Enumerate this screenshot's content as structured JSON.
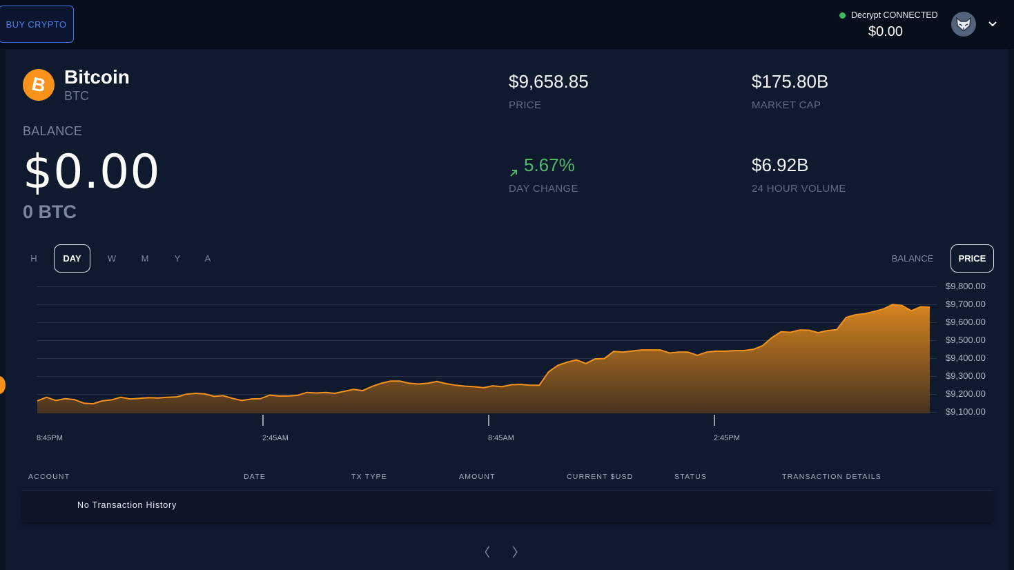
{
  "header": {
    "buy_button": "BUY CRYPTO",
    "connection_status": "Decrypt CONNECTED",
    "wallet_balance": "$0.00",
    "avatar_icon": "fox-icon",
    "menu_icon": "chevron-down-icon"
  },
  "asset": {
    "name": "Bitcoin",
    "ticker": "BTC",
    "logo_icon": "bitcoin-icon",
    "balance_label": "BALANCE",
    "balance_usd": "$0.00",
    "balance_btc": "0 BTC"
  },
  "stats": {
    "price": {
      "value": "$9,658.85",
      "label": "PRICE"
    },
    "market_cap": {
      "value": "$175.80B",
      "label": "MARKET CAP"
    },
    "day_change": {
      "value": "5.67%",
      "label": "DAY CHANGE",
      "direction_icon": "arrow-up-right-icon"
    },
    "volume": {
      "value": "$6.92B",
      "label": "24 HOUR VOLUME"
    }
  },
  "timeframes": {
    "items": [
      "H",
      "DAY",
      "W",
      "M",
      "Y",
      "A"
    ],
    "selected": "DAY"
  },
  "chart_mode": {
    "items": [
      "BALANCE",
      "PRICE"
    ],
    "selected": "PRICE"
  },
  "chart_data": {
    "type": "area",
    "title": "",
    "xlabel": "",
    "ylabel": "",
    "ylim": [
      9100,
      9800
    ],
    "y_ticks": [
      "$9,800.00",
      "$9,700.00",
      "$9,600.00",
      "$9,500.00",
      "$9,400.00",
      "$9,300.00",
      "$9,200.00",
      "$9,100.00"
    ],
    "x_ticks": [
      "8:45PM",
      "2:45AM",
      "8:45AM",
      "2:45PM"
    ],
    "series": [
      {
        "values": [
          9158,
          9178,
          9160,
          9170,
          9165,
          9145,
          9142,
          9158,
          9164,
          9178,
          9168,
          9172,
          9176,
          9174,
          9178,
          9180,
          9195,
          9200,
          9197,
          9183,
          9187,
          9172,
          9160,
          9168,
          9170,
          9190,
          9185,
          9185,
          9189,
          9205,
          9202,
          9205,
          9200,
          9211,
          9222,
          9215,
          9238,
          9256,
          9268,
          9268,
          9256,
          9252,
          9256,
          9266,
          9254,
          9245,
          9240,
          9237,
          9231,
          9242,
          9237,
          9248,
          9250,
          9245,
          9245,
          9320,
          9356,
          9374,
          9386,
          9366,
          9392,
          9394,
          9434,
          9430,
          9436,
          9442,
          9442,
          9442,
          9425,
          9430,
          9430,
          9412,
          9430,
          9435,
          9435,
          9438,
          9438,
          9445,
          9465,
          9510,
          9543,
          9540,
          9553,
          9552,
          9538,
          9550,
          9555,
          9623,
          9638,
          9644,
          9656,
          9670,
          9695,
          9690,
          9660,
          9682,
          9680
        ],
        "color": "#f7931a"
      }
    ]
  },
  "transactions": {
    "columns": [
      "ACCOUNT",
      "DATE",
      "TX TYPE",
      "AMOUNT",
      "CURRENT $USD",
      "STATUS",
      "TRANSACTION DETAILS"
    ],
    "empty_message": "No Transaction History"
  },
  "pagination": {
    "prev": "〈",
    "next": "〉"
  },
  "colors": {
    "accent": "#f7931a",
    "positive": "#52b76b",
    "link": "#4c82f0"
  }
}
